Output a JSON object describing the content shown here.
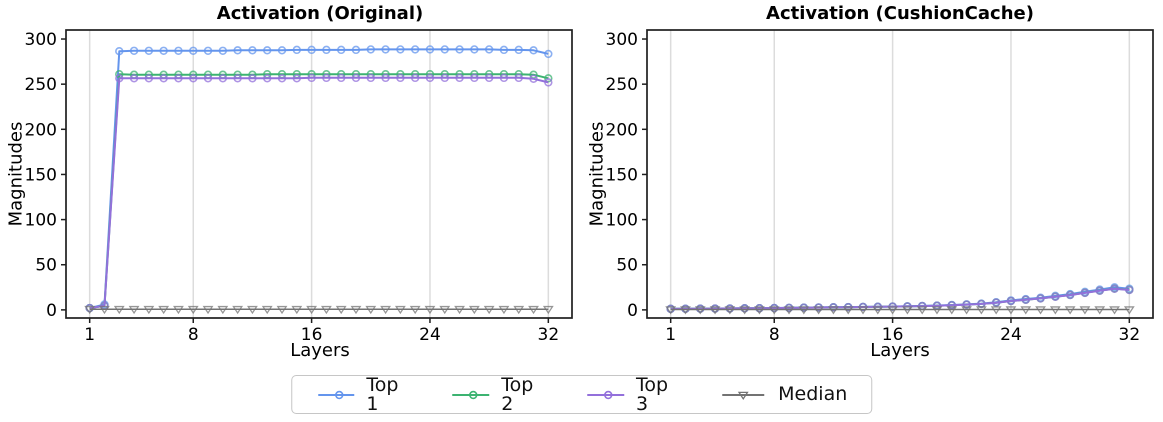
{
  "figure": {
    "legend": {
      "items": [
        {
          "label": "Top 1",
          "color": "#6495ED",
          "marker": "circle"
        },
        {
          "label": "Top 2",
          "color": "#3CB371",
          "marker": "circle"
        },
        {
          "label": "Top 3",
          "color": "#9370DB",
          "marker": "circle"
        },
        {
          "label": "Median",
          "color": "#737373",
          "marker": "triangle-down"
        }
      ],
      "position": "bottom-center-shared"
    },
    "colors": {
      "grid": "#dcdcdc",
      "spine": "#1f1f1f",
      "background": "#ffffff"
    }
  },
  "chart_data": [
    {
      "type": "line",
      "title": "Activation (Original)",
      "xlabel": "Layers",
      "ylabel": "Magnitudes",
      "x": [
        1,
        2,
        3,
        4,
        5,
        6,
        7,
        8,
        9,
        10,
        11,
        12,
        13,
        14,
        15,
        16,
        17,
        18,
        19,
        20,
        21,
        22,
        23,
        24,
        25,
        26,
        27,
        28,
        29,
        30,
        31,
        32
      ],
      "xticks": [
        1,
        8,
        16,
        24,
        32
      ],
      "yticks": [
        0,
        50,
        100,
        150,
        200,
        250,
        300
      ],
      "xlim": [
        -0.6,
        33.6
      ],
      "ylim": [
        -9,
        310
      ],
      "grid": "vertical-only",
      "series": [
        {
          "name": "Top 1",
          "color": "#6495ED",
          "marker": "circle",
          "values": [
            2,
            6,
            286.5,
            287,
            287,
            287,
            287,
            287,
            287,
            287,
            287.5,
            287.5,
            287.5,
            287.5,
            288,
            288,
            288,
            288,
            288,
            288.5,
            288.5,
            288.5,
            288.5,
            288.5,
            288.5,
            288.5,
            288.5,
            288.5,
            288,
            288,
            287.5,
            283.5
          ]
        },
        {
          "name": "Top 2",
          "color": "#3CB371",
          "marker": "circle",
          "values": [
            2,
            4.5,
            261,
            260.5,
            260.5,
            260.5,
            260.5,
            260.5,
            260.5,
            260.5,
            260.5,
            260.5,
            261,
            261,
            261,
            261,
            261,
            261,
            261,
            261,
            261,
            261,
            261,
            261,
            261,
            261,
            261,
            261,
            261,
            261,
            260.5,
            256.5
          ]
        },
        {
          "name": "Top 3",
          "color": "#9370DB",
          "marker": "circle",
          "values": [
            2,
            4.5,
            256.5,
            256.5,
            256.5,
            256.5,
            256.5,
            256.5,
            256.5,
            256.5,
            256.5,
            256.5,
            256.5,
            256.5,
            256.5,
            257,
            257,
            257,
            257,
            257,
            257,
            257,
            257,
            257,
            257,
            257,
            257,
            257,
            257,
            257,
            256,
            252
          ]
        },
        {
          "name": "Median",
          "color": "#737373",
          "marker": "triangle-down",
          "values": [
            0.8,
            0.8,
            0.8,
            0.8,
            0.8,
            0.8,
            0.8,
            0.8,
            0.8,
            0.8,
            0.8,
            0.8,
            0.8,
            0.8,
            0.8,
            0.8,
            0.8,
            0.8,
            0.8,
            0.8,
            0.8,
            0.8,
            0.8,
            0.8,
            0.8,
            0.8,
            0.8,
            0.8,
            0.8,
            0.8,
            0.8,
            0.8
          ]
        }
      ]
    },
    {
      "type": "line",
      "title": "Activation (CushionCache)",
      "xlabel": "Layers",
      "ylabel": "Magnitudes",
      "x": [
        1,
        2,
        3,
        4,
        5,
        6,
        7,
        8,
        9,
        10,
        11,
        12,
        13,
        14,
        15,
        16,
        17,
        18,
        19,
        20,
        21,
        22,
        23,
        24,
        25,
        26,
        27,
        28,
        29,
        30,
        31,
        32
      ],
      "xticks": [
        1,
        8,
        16,
        24,
        32
      ],
      "yticks": [
        0,
        50,
        100,
        150,
        200,
        250,
        300
      ],
      "xlim": [
        -0.6,
        33.6
      ],
      "ylim": [
        -9,
        310
      ],
      "grid": "vertical-only",
      "series": [
        {
          "name": "Top 1",
          "color": "#6495ED",
          "marker": "circle",
          "values": [
            1.2,
            1.3,
            1.4,
            1.5,
            1.6,
            1.8,
            1.9,
            2.1,
            2.3,
            2.5,
            2.7,
            2.9,
            3.1,
            3.3,
            3.5,
            3.7,
            4,
            4.4,
            4.8,
            5.4,
            6.1,
            7,
            8.5,
            10.5,
            12,
            13.5,
            15.5,
            17.5,
            20,
            22.5,
            25,
            23.5
          ]
        },
        {
          "name": "Top 2",
          "color": "#3CB371",
          "marker": "circle",
          "values": [
            1.1,
            1.2,
            1.3,
            1.4,
            1.5,
            1.7,
            1.8,
            2,
            2.2,
            2.4,
            2.6,
            2.8,
            3,
            3.2,
            3.4,
            3.6,
            3.8,
            4.2,
            4.6,
            5.1,
            5.8,
            6.6,
            8,
            9.8,
            11.2,
            12.7,
            14.6,
            16.5,
            18.9,
            21.3,
            23.6,
            22.2
          ]
        },
        {
          "name": "Top 3",
          "color": "#9370DB",
          "marker": "circle",
          "values": [
            1.1,
            1.2,
            1.3,
            1.4,
            1.5,
            1.7,
            1.8,
            2,
            2.2,
            2.4,
            2.6,
            2.8,
            3,
            3.2,
            3.4,
            3.6,
            3.8,
            4.2,
            4.6,
            5.1,
            5.8,
            6.6,
            8,
            9.8,
            11.2,
            12.7,
            14.5,
            16.4,
            18.8,
            21.2,
            23.4,
            22
          ]
        },
        {
          "name": "Median",
          "color": "#737373",
          "marker": "triangle-down",
          "values": [
            0.4,
            0.4,
            0.4,
            0.4,
            0.4,
            0.4,
            0.4,
            0.4,
            0.4,
            0.4,
            0.4,
            0.4,
            0.4,
            0.4,
            0.4,
            0.4,
            0.4,
            0.4,
            0.4,
            0.4,
            0.4,
            0.4,
            0.4,
            0.4,
            0.4,
            0.4,
            0.4,
            0.4,
            0.4,
            0.4,
            0.4,
            0.4
          ]
        }
      ]
    }
  ]
}
